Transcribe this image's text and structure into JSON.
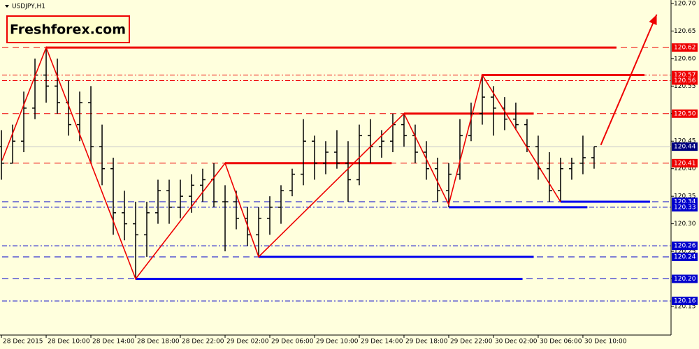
{
  "chart_data": {
    "type": "ohlc",
    "title": "USDJPY,H1",
    "watermark": "Freshforex.com",
    "categories": [
      "28 Dec 2015",
      null,
      null,
      null,
      "28 Dec 10:00",
      null,
      null,
      null,
      "28 Dec 14:00",
      null,
      null,
      null,
      "28 Dec 18:00",
      null,
      null,
      null,
      "28 Dec 22:00",
      null,
      null,
      null,
      "29 Dec 02:00",
      null,
      null,
      null,
      "29 Dec 06:00",
      null,
      null,
      null,
      "29 Dec 10:00",
      null,
      null,
      null,
      "29 Dec 14:00",
      null,
      null,
      null,
      "29 Dec 18:00",
      null,
      null,
      null,
      "29 Dec 22:00",
      null,
      null,
      null,
      "30 Dec 02:00",
      null,
      null,
      null,
      "30 Dec 06:00",
      null,
      null,
      null,
      "30 Dec 10:00",
      null
    ],
    "open": [
      120.44,
      120.41,
      120.45,
      120.51,
      120.57,
      120.55,
      120.52,
      120.48,
      120.52,
      120.44,
      120.4,
      120.32,
      120.3,
      120.28,
      120.32,
      120.36,
      120.33,
      120.35,
      120.37,
      120.38,
      120.34,
      120.34,
      120.31,
      120.28,
      120.31,
      120.33,
      120.36,
      120.39,
      120.45,
      120.41,
      120.43,
      120.41,
      120.38,
      120.46,
      120.44,
      120.45,
      120.48,
      120.46,
      120.43,
      120.4,
      120.36,
      120.39,
      120.46,
      120.5,
      120.53,
      120.51,
      120.49,
      120.48,
      120.44,
      120.4,
      120.36,
      120.4,
      120.41,
      120.42
    ],
    "high": [
      120.47,
      120.48,
      120.54,
      120.6,
      120.62,
      120.6,
      120.56,
      120.54,
      120.55,
      120.48,
      120.42,
      120.36,
      120.34,
      120.34,
      120.38,
      120.38,
      120.38,
      120.39,
      120.4,
      120.41,
      120.37,
      120.36,
      120.33,
      120.33,
      120.35,
      120.37,
      120.4,
      120.49,
      120.46,
      120.45,
      120.47,
      120.45,
      120.48,
      120.49,
      120.47,
      120.5,
      120.5,
      120.48,
      120.45,
      120.42,
      120.41,
      120.49,
      120.52,
      120.57,
      120.55,
      120.53,
      120.52,
      120.49,
      120.46,
      120.43,
      120.42,
      120.42,
      120.46,
      120.44
    ],
    "low": [
      120.38,
      120.41,
      120.43,
      120.49,
      120.52,
      120.5,
      120.46,
      120.45,
      120.41,
      120.37,
      120.28,
      120.27,
      120.2,
      120.24,
      120.3,
      120.3,
      120.31,
      120.32,
      120.34,
      120.33,
      120.25,
      120.29,
      120.26,
      120.24,
      120.28,
      120.3,
      120.35,
      120.37,
      120.38,
      120.39,
      120.4,
      120.34,
      120.37,
      120.41,
      120.42,
      120.43,
      120.44,
      120.41,
      120.38,
      120.34,
      120.33,
      120.38,
      120.45,
      120.48,
      120.46,
      120.47,
      120.47,
      120.43,
      120.38,
      120.34,
      120.34,
      120.38,
      120.39,
      120.4
    ],
    "close": [
      120.41,
      120.45,
      120.51,
      120.57,
      120.55,
      120.52,
      120.48,
      120.52,
      120.44,
      120.4,
      120.32,
      120.3,
      120.28,
      120.32,
      120.36,
      120.33,
      120.35,
      120.37,
      120.38,
      120.34,
      120.34,
      120.31,
      120.28,
      120.31,
      120.33,
      120.36,
      120.39,
      120.45,
      120.41,
      120.43,
      120.41,
      120.38,
      120.46,
      120.44,
      120.45,
      120.48,
      120.46,
      120.43,
      120.4,
      120.36,
      120.39,
      120.46,
      120.5,
      120.53,
      120.51,
      120.49,
      120.48,
      120.44,
      120.4,
      120.36,
      120.4,
      120.41,
      120.42,
      120.44
    ],
    "bar_color": "#000000",
    "xlim": [
      0.06,
      59.88
    ],
    "ylim": [
      120.098,
      120.7025
    ],
    "yticks": [
      {
        "value": 120.7,
        "label": "120.70"
      },
      120.65,
      {
        "value": 120.6,
        "label": "120.60"
      },
      120.55,
      {
        "value": 120.5,
        "label": "120.50"
      },
      120.45,
      {
        "value": 120.4,
        "label": "120.40"
      },
      120.35,
      {
        "value": 120.3,
        "label": "120.30"
      },
      120.25,
      {
        "value": 120.2,
        "label": "120.20"
      },
      120.15
    ],
    "levels": [
      {
        "value": 120.62,
        "color": "#ee0000",
        "style": "dash"
      },
      {
        "value": 120.57,
        "color": "#ee0000",
        "style": "dashdot"
      },
      {
        "value": 120.56,
        "color": "#ee0000",
        "style": "dashdot"
      },
      {
        "value": 120.5,
        "label": "120.50",
        "color": "#ee0000",
        "style": "dash"
      },
      {
        "value": 120.44,
        "color": "#000080",
        "style": "solid",
        "line_color": "#c8c8c8"
      },
      {
        "value": 120.41,
        "color": "#ee0000",
        "style": "dash"
      },
      {
        "value": 120.34,
        "color": "#0000cc",
        "style": "dash"
      },
      {
        "value": 120.33,
        "color": "#0000cc",
        "style": "dashdot"
      },
      {
        "value": 120.26,
        "color": "#0000cc",
        "style": "dashdot"
      },
      {
        "value": 120.24,
        "color": "#0000cc",
        "style": "dash"
      },
      {
        "value": 120.2,
        "label": "120.20",
        "color": "#0000cc",
        "style": "dash"
      },
      {
        "value": 120.16,
        "color": "#0000cc",
        "style": "dashdot"
      }
    ],
    "segments": [
      {
        "value": 120.62,
        "start": 4,
        "end": 55,
        "color": "#ee0000"
      },
      {
        "value": 120.57,
        "start": 43,
        "end": 57.5,
        "color": "#ee0000"
      },
      {
        "value": 120.5,
        "start": 36,
        "end": 47.6,
        "color": "#ee0000"
      },
      {
        "value": 120.41,
        "start": 20,
        "end": 34.9,
        "color": "#ee0000"
      },
      {
        "value": 120.2,
        "start": 12,
        "end": 46.6,
        "color": "#0000ee"
      },
      {
        "value": 120.24,
        "start": 23,
        "end": 47.6,
        "color": "#0000ee"
      },
      {
        "value": 120.33,
        "start": 40,
        "end": 52.4,
        "color": "#0000ee"
      },
      {
        "value": 120.34,
        "start": 50,
        "end": 58,
        "color": "#0000ee"
      }
    ],
    "zigzag": {
      "color": "#ee0000",
      "x": [
        0.06,
        4,
        12,
        20,
        23,
        36,
        40,
        43,
        50
      ],
      "values": [
        120.415,
        120.62,
        120.2,
        120.41,
        120.24,
        120.5,
        120.335,
        120.57,
        120.34
      ]
    },
    "arrow": {
      "color": "#ee0000",
      "x": [
        53.6,
        58.6
      ],
      "values": [
        120.443,
        120.68
      ]
    }
  }
}
